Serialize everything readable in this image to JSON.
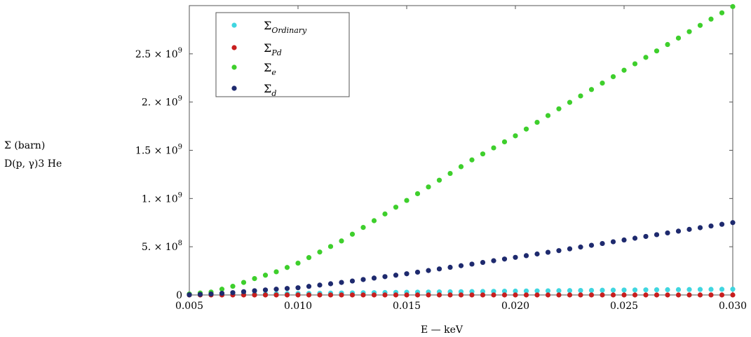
{
  "chart_data": {
    "type": "scatter",
    "xlabel": "E — keV",
    "ylabel_lines": [
      "Σ (barn)",
      "D(p, γ)3 He"
    ],
    "xlim": [
      0.005,
      0.03
    ],
    "ylim": [
      0,
      3000000000
    ],
    "x_ticks": [
      0.005,
      0.01,
      0.015,
      0.02,
      0.025,
      0.03
    ],
    "x_tick_labels": [
      "0.005",
      "0.010",
      "0.015",
      "0.020",
      "0.025",
      "0.030"
    ],
    "y_ticks": [
      0,
      500000000,
      1000000000,
      1500000000,
      2000000000,
      2500000000
    ],
    "y_tick_labels": [
      {
        "mant": "0",
        "exp": ""
      },
      {
        "mant": "5. × 10",
        "exp": "8"
      },
      {
        "mant": "1. × 10",
        "exp": "9"
      },
      {
        "mant": "1.5 × 10",
        "exp": "9"
      },
      {
        "mant": "2. × 10",
        "exp": "9"
      },
      {
        "mant": "2.5 × 10",
        "exp": "9"
      }
    ],
    "legend_position": "top-left",
    "x_samples": {
      "start": 0.005,
      "step": 0.0005,
      "count": 51
    },
    "series": [
      {
        "name": "Σ",
        "subscript": "Ordinary",
        "color": "#3fd6e0",
        "anchors": {
          "x": [
            0.005,
            0.01,
            0.015,
            0.02,
            0.025,
            0.03
          ],
          "y": [
            0,
            15000000,
            28000000,
            40000000,
            51000000,
            60000000
          ]
        }
      },
      {
        "name": "Σ",
        "subscript": "Pd",
        "color": "#c81e1e",
        "anchors": {
          "x": [
            0.005,
            0.015,
            0.03
          ],
          "y": [
            0,
            0,
            0
          ]
        }
      },
      {
        "name": "Σ",
        "subscript": "e",
        "color": "#3ecf2c",
        "anchors": {
          "x": [
            0.005,
            0.006,
            0.007,
            0.008,
            0.009,
            0.01,
            0.012,
            0.015,
            0.018,
            0.02,
            0.022,
            0.025,
            0.028,
            0.03
          ],
          "y": [
            10000000,
            30000000,
            90000000,
            170000000,
            240000000,
            330000000,
            560000000,
            980000000,
            1400000000,
            1650000000,
            1930000000,
            2330000000,
            2730000000,
            2990000000
          ]
        }
      },
      {
        "name": "Σ",
        "subscript": "d",
        "color": "#1e2a6e",
        "anchors": {
          "x": [
            0.005,
            0.006,
            0.007,
            0.008,
            0.009,
            0.01,
            0.012,
            0.015,
            0.018,
            0.02,
            0.022,
            0.025,
            0.028,
            0.03
          ],
          "y": [
            2000000,
            10000000,
            24000000,
            44000000,
            60000000,
            75000000,
            130000000,
            220000000,
            320000000,
            390000000,
            460000000,
            570000000,
            680000000,
            750000000
          ]
        }
      }
    ]
  }
}
